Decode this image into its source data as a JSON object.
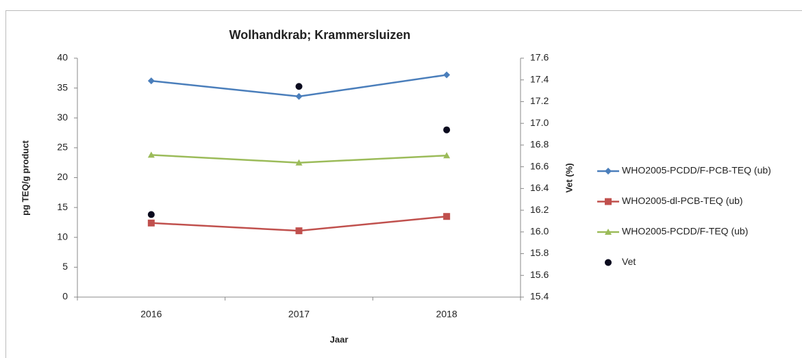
{
  "chart_data": {
    "type": "line",
    "title": "Wolhandkrab; Krammersluizen",
    "x_label": "Jaar",
    "y_label": "pg TEQ/g product",
    "y2_label": "Vet (%)",
    "categories": [
      "2016",
      "2017",
      "2018"
    ],
    "ylim": [
      0,
      40
    ],
    "yticks": [
      0,
      5,
      10,
      15,
      20,
      25,
      30,
      35,
      40
    ],
    "y2lim": [
      15.4,
      17.6
    ],
    "y2ticks": [
      15.4,
      15.6,
      15.8,
      {
        "value": 16,
        "label": "16.0"
      },
      16.2,
      16.4,
      16.6,
      16.8,
      {
        "value": 17,
        "label": "17.0"
      },
      17.2,
      17.4,
      17.6
    ],
    "grid": false,
    "legend": "right",
    "series": [
      {
        "name": "WHO2005-PCDD/F-PCB-TEQ (ub)",
        "color": "#4a7ebb",
        "marker": "diamond",
        "values": [
          36.2,
          33.6,
          37.2
        ]
      },
      {
        "name": "WHO2005-dl-PCB-TEQ (ub)",
        "color": "#c0504d",
        "marker": "square",
        "values": [
          12.4,
          11.1,
          13.5
        ]
      },
      {
        "name": "WHO2005-PCDD/F-TEQ (ub)",
        "color": "#9bbb59",
        "marker": "triangle",
        "values": [
          23.8,
          22.5,
          23.7
        ]
      },
      {
        "name": "Vet",
        "color": "#0a0a1e",
        "marker": "circle",
        "line": false,
        "axis": "y2",
        "values": [
          16.16,
          17.34,
          16.94
        ]
      }
    ]
  }
}
